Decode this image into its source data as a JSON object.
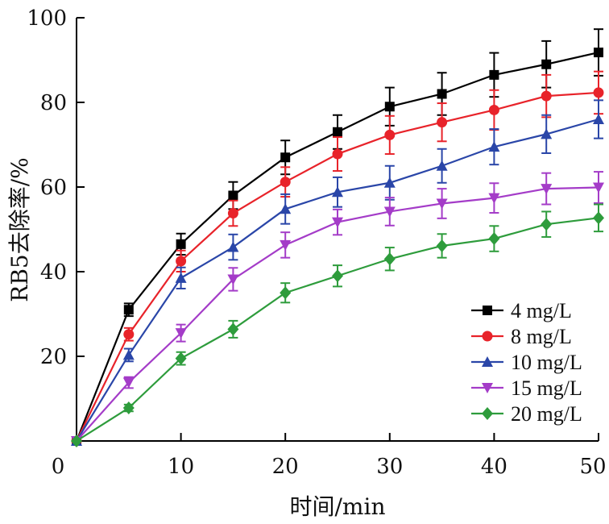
{
  "chart_data": {
    "type": "line",
    "xlabel": "时间/min",
    "ylabel": "RB5去除率/%",
    "xlim": [
      0,
      50
    ],
    "ylim": [
      0,
      100
    ],
    "x_ticks": [
      "0",
      "10",
      "20",
      "30",
      "40",
      "50"
    ],
    "y_ticks": [
      "20",
      "40",
      "60",
      "80",
      "100"
    ],
    "x_tick_values": [
      0,
      10,
      20,
      30,
      40,
      50
    ],
    "y_tick_values": [
      20,
      40,
      60,
      80,
      100
    ],
    "grid": false,
    "legend_position": "bottom-right",
    "x": [
      0,
      5,
      10,
      15,
      20,
      25,
      30,
      35,
      40,
      45,
      50
    ],
    "series": [
      {
        "name": "4 mg/L",
        "color": "#000000",
        "marker": "square",
        "values": [
          0,
          31,
          46.5,
          58,
          67,
          73,
          79,
          82,
          86.5,
          89,
          91.8
        ],
        "errors": [
          0,
          1.5,
          2.5,
          3.2,
          4,
          4,
          4.5,
          5,
          5.2,
          5.5,
          5.5
        ]
      },
      {
        "name": "8 mg/L",
        "color": "#e8232a",
        "marker": "circle",
        "values": [
          0,
          25.2,
          42.5,
          53.8,
          61.2,
          67.8,
          72.3,
          75.3,
          78.2,
          81.5,
          82.3
        ],
        "errors": [
          0,
          1.5,
          2.5,
          3,
          3.5,
          4,
          4.5,
          4.5,
          4.7,
          5,
          5
        ]
      },
      {
        "name": "10 mg/L",
        "color": "#2a46a8",
        "marker": "triangle-up",
        "values": [
          0,
          20.3,
          38.5,
          45.8,
          54.8,
          58.8,
          61,
          65,
          69.5,
          72.5,
          76
        ],
        "errors": [
          0,
          1.5,
          2.5,
          3,
          3.5,
          3.5,
          4,
          4,
          4.2,
          4.5,
          4.5
        ]
      },
      {
        "name": "15 mg/L",
        "color": "#a43cc8",
        "marker": "triangle-down",
        "values": [
          0,
          13.8,
          25.5,
          38.2,
          46.3,
          51.7,
          54.2,
          56.1,
          57.4,
          59.6,
          59.9
        ],
        "errors": [
          0,
          1.3,
          2,
          2.7,
          3,
          3,
          3.3,
          3.5,
          3.5,
          3.7,
          3.7
        ]
      },
      {
        "name": "20 mg/L",
        "color": "#2e9c3c",
        "marker": "diamond",
        "values": [
          0,
          7.8,
          19.5,
          26.4,
          35,
          39,
          43,
          46.1,
          47.8,
          51.2,
          52.7
        ],
        "errors": [
          0,
          0.8,
          1.5,
          2,
          2.3,
          2.5,
          2.7,
          2.8,
          3,
          3,
          3.2
        ]
      }
    ]
  }
}
